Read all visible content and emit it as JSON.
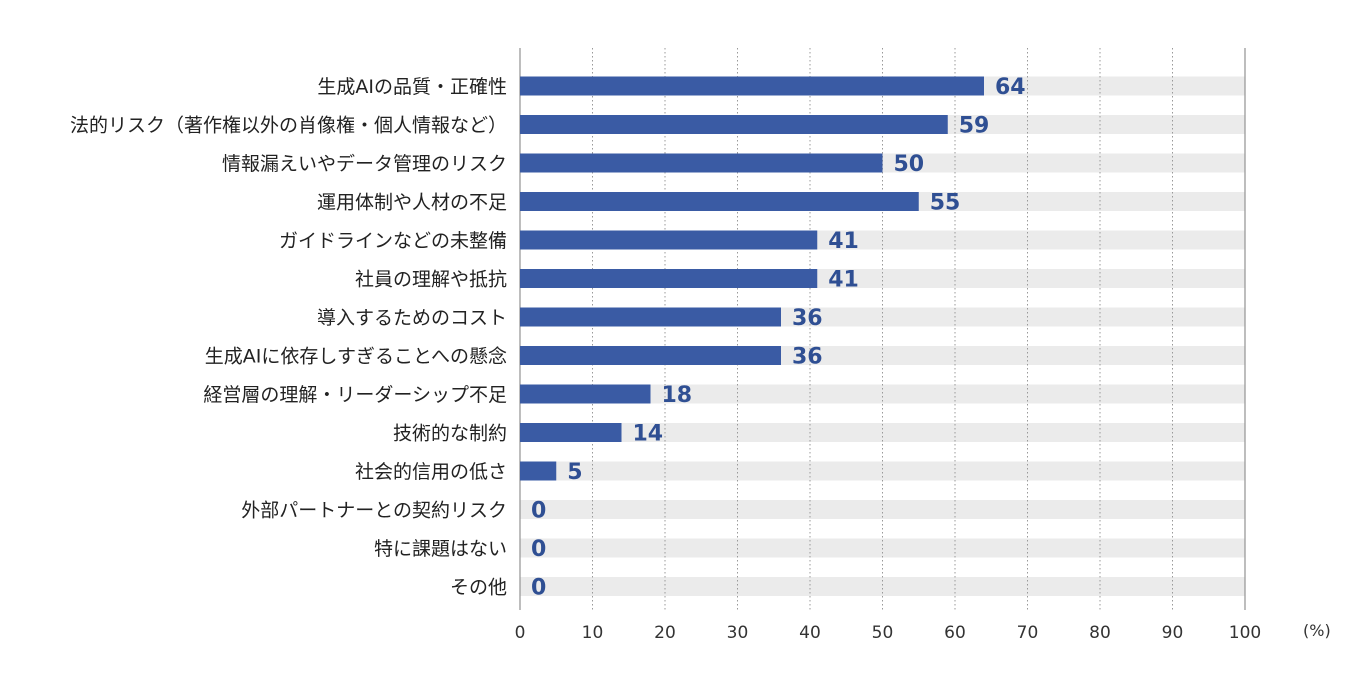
{
  "chart_data": {
    "type": "bar",
    "orientation": "horizontal",
    "categories": [
      "生成AIの品質・正確性",
      "法的リスク（著作権以外の肖像権・個人情報など）",
      "情報漏えいやデータ管理のリスク",
      "運用体制や人材の不足",
      "ガイドラインなどの未整備",
      "社員の理解や抵抗",
      "導入するためのコスト",
      "生成AIに依存しすぎることへの懸念",
      "経営層の理解・リーダーシップ不足",
      "技術的な制約",
      "社会的信用の低さ",
      "外部パートナーとの契約リスク",
      "特に課題はない",
      "その他"
    ],
    "values": [
      64,
      59,
      50,
      55,
      41,
      41,
      36,
      36,
      18,
      14,
      5,
      0,
      0,
      0
    ],
    "value_labels": [
      "64",
      "59",
      "50",
      "55",
      "41",
      "41",
      "36",
      "36",
      "18",
      "14",
      "5",
      "0",
      "0",
      "0"
    ],
    "xlim": [
      0,
      100
    ],
    "x_ticks": [
      "0",
      "10",
      "20",
      "30",
      "40",
      "50",
      "60",
      "70",
      "80",
      "90",
      "100"
    ],
    "x_unit": "(%)",
    "grid": "vertical dotted",
    "colors": {
      "bar": "#3a5ba4",
      "track": "#ebebeb",
      "value_text": "#2f4f93",
      "grid": "#999999"
    }
  }
}
